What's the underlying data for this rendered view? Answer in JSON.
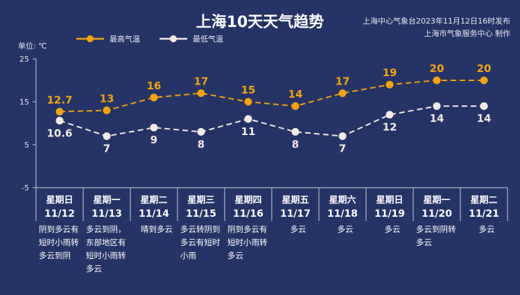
{
  "title": "上海10天天气趋势",
  "publisher": "上海中心气象台2023年11月12日16时发布",
  "producer": "上海市气象服务中心 制作",
  "unit": "单位: ℃",
  "colors": {
    "high": "#f5a30a",
    "low": "#f2ebe3",
    "background": "#243466"
  },
  "chart_data": {
    "type": "line",
    "title": "上海10天天气趋势",
    "ylabel": "单位: ℃",
    "ylim": [
      -5,
      25
    ],
    "yticks": [
      "25",
      "15",
      "5",
      "-5"
    ],
    "ytick_values": [
      25,
      15,
      5,
      -5
    ],
    "legend_placement": "top-left",
    "days": [
      {
        "weekday": "星期日",
        "date": "11/12",
        "weather": "阴到多云有短时小雨转多云到阴"
      },
      {
        "weekday": "星期一",
        "date": "11/13",
        "weather": "多云到阴，东部地区有短时小雨转多云"
      },
      {
        "weekday": "星期二",
        "date": "11/14",
        "weather": "晴到多云"
      },
      {
        "weekday": "星期三",
        "date": "11/15",
        "weather": "多云转阴到多云有短时小雨"
      },
      {
        "weekday": "星期四",
        "date": "11/16",
        "weather": "阴到多云有短时小雨转多云"
      },
      {
        "weekday": "星期五",
        "date": "11/17",
        "weather": "多云"
      },
      {
        "weekday": "星期六",
        "date": "11/18",
        "weather": "多云"
      },
      {
        "weekday": "星期日",
        "date": "11/19",
        "weather": "多云"
      },
      {
        "weekday": "星期一",
        "date": "11/20",
        "weather": "多云到阴转多云"
      },
      {
        "weekday": "星期二",
        "date": "11/21",
        "weather": "多云"
      }
    ],
    "series": [
      {
        "name": "最高气温",
        "values": [
          12.7,
          13,
          16,
          17,
          15,
          14,
          17,
          19,
          20,
          20
        ],
        "labels": [
          "12.7",
          "13",
          "16",
          "17",
          "15",
          "14",
          "17",
          "19",
          "20",
          "20"
        ]
      },
      {
        "name": "最低气温",
        "values": [
          10.6,
          7,
          9,
          8,
          11,
          8,
          7,
          12,
          14,
          14
        ],
        "labels": [
          "10.6",
          "7",
          "9",
          "8",
          "11",
          "8",
          "7",
          "12",
          "14",
          "14"
        ]
      }
    ]
  }
}
